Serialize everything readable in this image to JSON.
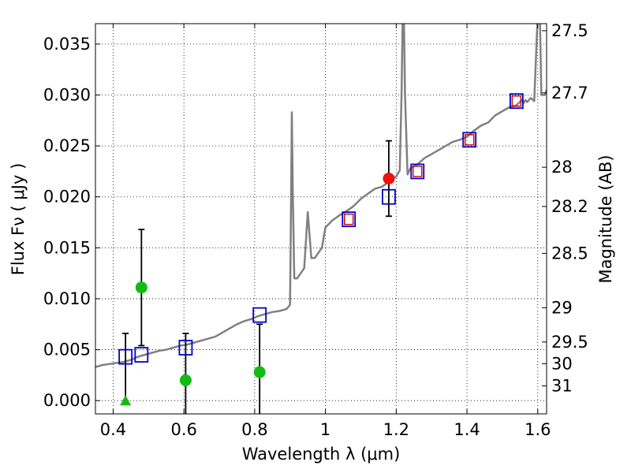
{
  "chart_data": {
    "type": "scatter",
    "title": "",
    "xlabel": "Wavelength  λ (μm)",
    "ylabel": "Flux  Fν  ( μJy )",
    "y2label": "Magnitude (AB)",
    "xlim": [
      0.35,
      1.625
    ],
    "ylim": [
      -0.0013,
      0.037
    ],
    "grid": true,
    "x_ticks": [
      0.4,
      0.6,
      0.8,
      1.0,
      1.2,
      1.4,
      1.6
    ],
    "x_tick_labels": [
      "0.4",
      "0.6",
      "0.8",
      "1",
      "1.2",
      "1.4",
      "1.6"
    ],
    "y_ticks": [
      0.0,
      0.005,
      0.01,
      0.015,
      0.02,
      0.025,
      0.03,
      0.035
    ],
    "y_tick_labels": [
      "0.000",
      "0.005",
      "0.010",
      "0.015",
      "0.020",
      "0.025",
      "0.030",
      "0.035"
    ],
    "y2_ticks": [
      {
        "label": "27.5",
        "mag": 27.5
      },
      {
        "label": "27.7",
        "mag": 27.7
      },
      {
        "label": "28",
        "mag": 28.0
      },
      {
        "label": "28.2",
        "mag": 28.2
      },
      {
        "label": "28.5",
        "mag": 28.5
      },
      {
        "label": "29",
        "mag": 29.0
      },
      {
        "label": "29.5",
        "mag": 29.5
      },
      {
        "label": "30",
        "mag": 30.0
      },
      {
        "label": "31",
        "mag": 31.0
      }
    ],
    "series": [
      {
        "name": "model_spectrum",
        "kind": "line",
        "color": "#808080",
        "x": [
          0.35,
          0.37,
          0.39,
          0.41,
          0.43,
          0.45,
          0.47,
          0.49,
          0.51,
          0.53,
          0.55,
          0.57,
          0.59,
          0.61,
          0.63,
          0.65,
          0.67,
          0.69,
          0.71,
          0.73,
          0.75,
          0.77,
          0.79,
          0.81,
          0.83,
          0.85,
          0.87,
          0.89,
          0.9,
          0.902,
          0.905,
          0.908,
          0.912,
          0.92,
          0.94,
          0.95,
          0.96,
          0.97,
          0.98,
          0.99,
          1.0,
          1.02,
          1.04,
          1.06,
          1.08,
          1.1,
          1.12,
          1.14,
          1.16,
          1.18,
          1.2,
          1.21,
          1.215,
          1.22,
          1.225,
          1.232,
          1.24,
          1.26,
          1.28,
          1.3,
          1.32,
          1.34,
          1.36,
          1.38,
          1.4,
          1.42,
          1.44,
          1.46,
          1.48,
          1.5,
          1.52,
          1.54,
          1.555,
          1.56,
          1.565,
          1.57,
          1.58,
          1.59,
          1.6,
          1.605,
          1.61,
          1.62,
          1.625
        ],
        "y": [
          0.0033,
          0.0035,
          0.0036,
          0.0037,
          0.0038,
          0.004,
          0.0043,
          0.0045,
          0.0047,
          0.0049,
          0.005,
          0.0052,
          0.0054,
          0.0055,
          0.0057,
          0.0059,
          0.0061,
          0.0063,
          0.0067,
          0.0071,
          0.0075,
          0.0078,
          0.008,
          0.0083,
          0.0085,
          0.0087,
          0.0088,
          0.009,
          0.0094,
          0.016,
          0.0283,
          0.02,
          0.012,
          0.012,
          0.013,
          0.0185,
          0.014,
          0.014,
          0.0145,
          0.015,
          0.017,
          0.0177,
          0.0182,
          0.0186,
          0.0191,
          0.0198,
          0.0203,
          0.0208,
          0.021,
          0.0215,
          0.022,
          0.0226,
          0.03,
          0.042,
          0.03,
          0.0222,
          0.0228,
          0.0232,
          0.0238,
          0.0242,
          0.0246,
          0.025,
          0.0254,
          0.0256,
          0.0259,
          0.0265,
          0.027,
          0.0273,
          0.028,
          0.0284,
          0.0288,
          0.029,
          0.0295,
          0.0292,
          0.0295,
          0.0293,
          0.0297,
          0.0294,
          0.038,
          0.04,
          0.03,
          0.03,
          0.0305
        ]
      },
      {
        "name": "model_photometry",
        "kind": "open-square",
        "color": "#0000cc",
        "x": [
          0.435,
          0.48,
          0.605,
          0.814,
          1.066,
          1.179,
          1.26,
          1.407,
          1.54
        ],
        "y": [
          0.0043,
          0.0045,
          0.0052,
          0.0084,
          0.0178,
          0.02,
          0.0225,
          0.0256,
          0.0294
        ]
      },
      {
        "name": "detections",
        "kind": "red-square",
        "color": "#cc0000",
        "x": [
          1.066,
          1.26,
          1.407,
          1.54
        ],
        "y": [
          0.0178,
          0.0225,
          0.0256,
          0.0294
        ]
      },
      {
        "name": "observed_detection",
        "kind": "filled-circle",
        "color": "#ee1111",
        "x": [
          1.179
        ],
        "y": [
          0.0218
        ],
        "err": [
          0.0037
        ]
      },
      {
        "name": "observed_nondetection",
        "kind": "filled-circle",
        "color": "#11bb11",
        "x": [
          0.48,
          0.605,
          0.814
        ],
        "y": [
          0.0111,
          0.002,
          0.0028
        ],
        "err": [
          0.0057,
          0.0046,
          0.0047
        ]
      },
      {
        "name": "upper_limit",
        "kind": "triangle",
        "color": "#11bb11",
        "x": [
          0.435
        ],
        "y": [
          0.0
        ],
        "err_low": [
          0.0
        ],
        "err_high": [
          0.0066
        ]
      }
    ]
  }
}
